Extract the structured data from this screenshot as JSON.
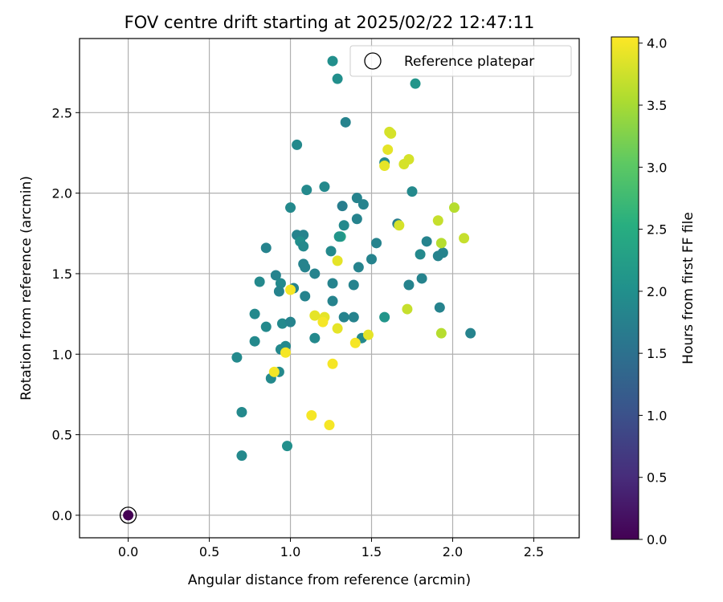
{
  "chart_data": {
    "type": "scatter",
    "title": "FOV centre drift starting at 2025/02/22 12:47:11",
    "xlabel": "Angular distance from reference (arcmin)",
    "ylabel": "Rotation from reference (arcmin)",
    "xlim": [
      -0.3,
      2.78
    ],
    "ylim": [
      -0.14,
      2.96
    ],
    "xticks": [
      "0.0",
      "0.5",
      "1.0",
      "1.5",
      "2.0",
      "2.5"
    ],
    "yticks": [
      "0.0",
      "0.5",
      "1.0",
      "1.5",
      "2.0",
      "2.5"
    ],
    "grid": true,
    "legend": {
      "position": "top-right",
      "entries": [
        "Reference platepar"
      ]
    },
    "colorbar": {
      "label": "Hours from first FF file",
      "range": [
        0.0,
        4.05
      ],
      "ticks": [
        "0.0",
        "0.5",
        "1.0",
        "1.5",
        "2.0",
        "2.5",
        "3.0",
        "3.5",
        "4.0"
      ],
      "colormap": "viridis"
    },
    "reference_point": {
      "x": 0.0,
      "y": 0.0,
      "hours": 0.0
    },
    "points": [
      {
        "x": 1.26,
        "y": 2.82,
        "h": 2.0
      },
      {
        "x": 1.29,
        "y": 2.71,
        "h": 2.0
      },
      {
        "x": 1.77,
        "y": 2.68,
        "h": 2.1
      },
      {
        "x": 1.34,
        "y": 2.44,
        "h": 1.8
      },
      {
        "x": 1.04,
        "y": 2.3,
        "h": 1.9
      },
      {
        "x": 1.58,
        "y": 2.19,
        "h": 1.9
      },
      {
        "x": 1.21,
        "y": 2.04,
        "h": 1.9
      },
      {
        "x": 1.1,
        "y": 2.02,
        "h": 1.9
      },
      {
        "x": 1.75,
        "y": 2.01,
        "h": 1.9
      },
      {
        "x": 1.41,
        "y": 1.97,
        "h": 1.8
      },
      {
        "x": 1.45,
        "y": 1.93,
        "h": 1.8
      },
      {
        "x": 1.32,
        "y": 1.92,
        "h": 1.7
      },
      {
        "x": 1.0,
        "y": 1.91,
        "h": 1.9
      },
      {
        "x": 1.41,
        "y": 1.84,
        "h": 1.8
      },
      {
        "x": 1.66,
        "y": 1.81,
        "h": 1.7
      },
      {
        "x": 1.33,
        "y": 1.8,
        "h": 1.9
      },
      {
        "x": 1.04,
        "y": 1.74,
        "h": 1.8
      },
      {
        "x": 1.08,
        "y": 1.74,
        "h": 1.8
      },
      {
        "x": 1.31,
        "y": 1.73,
        "h": 2.3
      },
      {
        "x": 1.3,
        "y": 1.73,
        "h": 2.1
      },
      {
        "x": 1.84,
        "y": 1.7,
        "h": 1.8
      },
      {
        "x": 1.06,
        "y": 1.7,
        "h": 2.0
      },
      {
        "x": 1.53,
        "y": 1.69,
        "h": 1.8
      },
      {
        "x": 1.08,
        "y": 1.67,
        "h": 1.9
      },
      {
        "x": 0.85,
        "y": 1.66,
        "h": 1.8
      },
      {
        "x": 1.25,
        "y": 1.64,
        "h": 1.9
      },
      {
        "x": 1.94,
        "y": 1.63,
        "h": 1.8
      },
      {
        "x": 1.8,
        "y": 1.62,
        "h": 1.9
      },
      {
        "x": 1.91,
        "y": 1.61,
        "h": 1.8
      },
      {
        "x": 1.5,
        "y": 1.59,
        "h": 1.8
      },
      {
        "x": 1.08,
        "y": 1.56,
        "h": 1.8
      },
      {
        "x": 1.09,
        "y": 1.54,
        "h": 1.8
      },
      {
        "x": 1.42,
        "y": 1.54,
        "h": 1.8
      },
      {
        "x": 1.15,
        "y": 1.5,
        "h": 1.8
      },
      {
        "x": 0.91,
        "y": 1.49,
        "h": 1.8
      },
      {
        "x": 1.81,
        "y": 1.47,
        "h": 1.8
      },
      {
        "x": 0.81,
        "y": 1.45,
        "h": 1.9
      },
      {
        "x": 0.94,
        "y": 1.44,
        "h": 1.9
      },
      {
        "x": 1.26,
        "y": 1.44,
        "h": 1.8
      },
      {
        "x": 1.73,
        "y": 1.43,
        "h": 1.8
      },
      {
        "x": 1.39,
        "y": 1.43,
        "h": 1.8
      },
      {
        "x": 1.02,
        "y": 1.41,
        "h": 1.8
      },
      {
        "x": 0.93,
        "y": 1.39,
        "h": 1.8
      },
      {
        "x": 1.09,
        "y": 1.36,
        "h": 1.8
      },
      {
        "x": 1.26,
        "y": 1.33,
        "h": 1.8
      },
      {
        "x": 1.92,
        "y": 1.29,
        "h": 1.8
      },
      {
        "x": 0.78,
        "y": 1.25,
        "h": 1.9
      },
      {
        "x": 1.33,
        "y": 1.23,
        "h": 1.8
      },
      {
        "x": 1.39,
        "y": 1.23,
        "h": 1.8
      },
      {
        "x": 1.58,
        "y": 1.23,
        "h": 2.1
      },
      {
        "x": 0.95,
        "y": 1.19,
        "h": 1.9
      },
      {
        "x": 1.0,
        "y": 1.2,
        "h": 1.8
      },
      {
        "x": 0.85,
        "y": 1.17,
        "h": 1.9
      },
      {
        "x": 2.11,
        "y": 1.13,
        "h": 1.8
      },
      {
        "x": 1.15,
        "y": 1.1,
        "h": 1.9
      },
      {
        "x": 1.44,
        "y": 1.1,
        "h": 1.9
      },
      {
        "x": 0.78,
        "y": 1.08,
        "h": 1.9
      },
      {
        "x": 0.97,
        "y": 1.05,
        "h": 1.9
      },
      {
        "x": 0.94,
        "y": 1.03,
        "h": 1.9
      },
      {
        "x": 0.67,
        "y": 0.98,
        "h": 1.9
      },
      {
        "x": 0.93,
        "y": 0.89,
        "h": 1.9
      },
      {
        "x": 0.88,
        "y": 0.85,
        "h": 1.9
      },
      {
        "x": 0.7,
        "y": 0.64,
        "h": 1.9
      },
      {
        "x": 0.98,
        "y": 0.43,
        "h": 2.0
      },
      {
        "x": 0.7,
        "y": 0.37,
        "h": 1.9
      },
      {
        "x": 1.61,
        "y": 2.38,
        "h": 3.8
      },
      {
        "x": 1.62,
        "y": 2.37,
        "h": 3.8
      },
      {
        "x": 1.6,
        "y": 2.27,
        "h": 3.9
      },
      {
        "x": 1.73,
        "y": 2.21,
        "h": 3.8
      },
      {
        "x": 1.7,
        "y": 2.18,
        "h": 3.8
      },
      {
        "x": 1.58,
        "y": 2.17,
        "h": 3.9
      },
      {
        "x": 2.01,
        "y": 1.91,
        "h": 3.6
      },
      {
        "x": 1.91,
        "y": 1.83,
        "h": 3.7
      },
      {
        "x": 1.67,
        "y": 1.8,
        "h": 3.8
      },
      {
        "x": 2.07,
        "y": 1.72,
        "h": 3.7
      },
      {
        "x": 1.93,
        "y": 1.69,
        "h": 3.6
      },
      {
        "x": 1.29,
        "y": 1.58,
        "h": 3.9
      },
      {
        "x": 1.0,
        "y": 1.4,
        "h": 4.0
      },
      {
        "x": 1.72,
        "y": 1.28,
        "h": 3.7
      },
      {
        "x": 1.15,
        "y": 1.24,
        "h": 3.9
      },
      {
        "x": 1.21,
        "y": 1.23,
        "h": 3.9
      },
      {
        "x": 1.2,
        "y": 1.2,
        "h": 4.0
      },
      {
        "x": 1.29,
        "y": 1.16,
        "h": 3.9
      },
      {
        "x": 1.93,
        "y": 1.13,
        "h": 3.6
      },
      {
        "x": 1.48,
        "y": 1.12,
        "h": 3.9
      },
      {
        "x": 1.4,
        "y": 1.07,
        "h": 4.0
      },
      {
        "x": 0.97,
        "y": 1.01,
        "h": 4.0
      },
      {
        "x": 1.26,
        "y": 0.94,
        "h": 4.0
      },
      {
        "x": 0.9,
        "y": 0.89,
        "h": 4.0
      },
      {
        "x": 1.13,
        "y": 0.62,
        "h": 4.0
      },
      {
        "x": 1.24,
        "y": 0.56,
        "h": 4.0
      }
    ]
  }
}
